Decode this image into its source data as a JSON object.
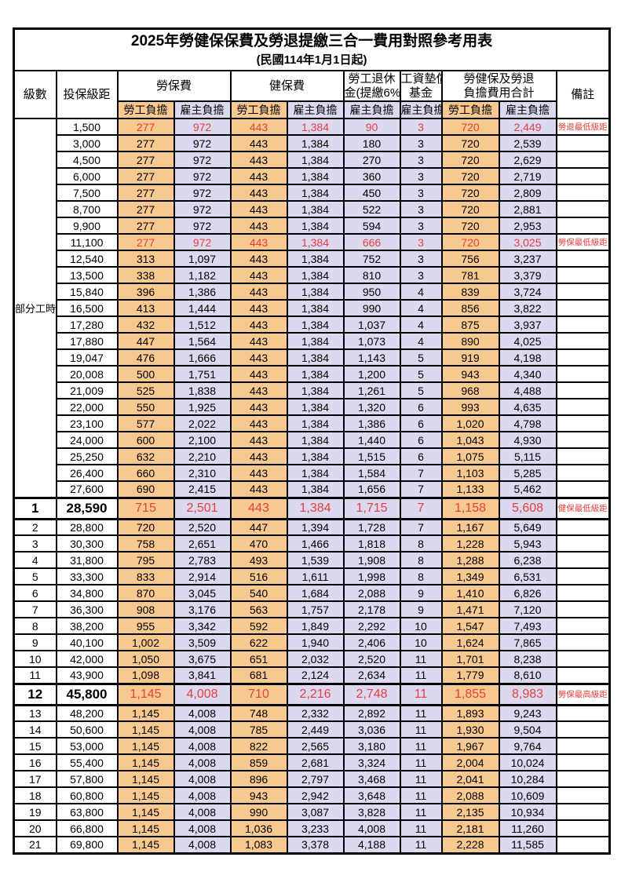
{
  "title": "2025年勞健保保費及勞退提繳三合一費用對照參考用表",
  "subtitle": "(民國114年1月1日起)",
  "headers": {
    "level": "級數",
    "bracket": "投保級距",
    "labor_ins": "勞保費",
    "health_ins": "健保費",
    "pension_l1": "勞工退休",
    "pension_l2": "金(提繳6%)",
    "wage_fund_l1": "工資墊償",
    "wage_fund_l2": "基金",
    "total_l1": "勞健保及勞退",
    "total_l2": "負擔費用合計",
    "remark": "備註",
    "employee": "勞工負擔",
    "employer": "雇主負擔"
  },
  "part_time": {
    "label": "部分工時",
    "rowspan": 23
  },
  "colors": {
    "employee_bg": "#F8C891",
    "employer_bg": "#DBD8EF",
    "highlight_text": "#E8403F",
    "border": "#000000"
  },
  "rows": [
    {
      "level": "",
      "bracket": "1,500",
      "values": [
        "277",
        "972",
        "443",
        "1,384",
        "90",
        "3",
        "720",
        "2,449"
      ],
      "remark": "勞退最低級距",
      "highlight": true,
      "big": false
    },
    {
      "level": "",
      "bracket": "3,000",
      "values": [
        "277",
        "972",
        "443",
        "1,384",
        "180",
        "3",
        "720",
        "2,539"
      ],
      "remark": "",
      "highlight": false,
      "big": false
    },
    {
      "level": "",
      "bracket": "4,500",
      "values": [
        "277",
        "972",
        "443",
        "1,384",
        "270",
        "3",
        "720",
        "2,629"
      ],
      "remark": "",
      "highlight": false,
      "big": false
    },
    {
      "level": "",
      "bracket": "6,000",
      "values": [
        "277",
        "972",
        "443",
        "1,384",
        "360",
        "3",
        "720",
        "2,719"
      ],
      "remark": "",
      "highlight": false,
      "big": false
    },
    {
      "level": "",
      "bracket": "7,500",
      "values": [
        "277",
        "972",
        "443",
        "1,384",
        "450",
        "3",
        "720",
        "2,809"
      ],
      "remark": "",
      "highlight": false,
      "big": false
    },
    {
      "level": "",
      "bracket": "8,700",
      "values": [
        "277",
        "972",
        "443",
        "1,384",
        "522",
        "3",
        "720",
        "2,881"
      ],
      "remark": "",
      "highlight": false,
      "big": false
    },
    {
      "level": "",
      "bracket": "9,900",
      "values": [
        "277",
        "972",
        "443",
        "1,384",
        "594",
        "3",
        "720",
        "2,953"
      ],
      "remark": "",
      "highlight": false,
      "big": false
    },
    {
      "level": "",
      "bracket": "11,100",
      "values": [
        "277",
        "972",
        "443",
        "1,384",
        "666",
        "3",
        "720",
        "3,025"
      ],
      "remark": "勞保最低級距",
      "highlight": true,
      "big": false
    },
    {
      "level": "",
      "bracket": "12,540",
      "values": [
        "313",
        "1,097",
        "443",
        "1,384",
        "752",
        "3",
        "756",
        "3,237"
      ],
      "remark": "",
      "highlight": false,
      "big": false
    },
    {
      "level": "",
      "bracket": "13,500",
      "values": [
        "338",
        "1,182",
        "443",
        "1,384",
        "810",
        "3",
        "781",
        "3,379"
      ],
      "remark": "",
      "highlight": false,
      "big": false
    },
    {
      "level": "",
      "bracket": "15,840",
      "values": [
        "396",
        "1,386",
        "443",
        "1,384",
        "950",
        "4",
        "839",
        "3,724"
      ],
      "remark": "",
      "highlight": false,
      "big": false
    },
    {
      "level": "",
      "bracket": "16,500",
      "values": [
        "413",
        "1,444",
        "443",
        "1,384",
        "990",
        "4",
        "856",
        "3,822"
      ],
      "remark": "",
      "highlight": false,
      "big": false
    },
    {
      "level": "",
      "bracket": "17,280",
      "values": [
        "432",
        "1,512",
        "443",
        "1,384",
        "1,037",
        "4",
        "875",
        "3,937"
      ],
      "remark": "",
      "highlight": false,
      "big": false
    },
    {
      "level": "",
      "bracket": "17,880",
      "values": [
        "447",
        "1,564",
        "443",
        "1,384",
        "1,073",
        "4",
        "890",
        "4,025"
      ],
      "remark": "",
      "highlight": false,
      "big": false
    },
    {
      "level": "",
      "bracket": "19,047",
      "values": [
        "476",
        "1,666",
        "443",
        "1,384",
        "1,143",
        "5",
        "919",
        "4,198"
      ],
      "remark": "",
      "highlight": false,
      "big": false
    },
    {
      "level": "",
      "bracket": "20,008",
      "values": [
        "500",
        "1,751",
        "443",
        "1,384",
        "1,200",
        "5",
        "943",
        "4,340"
      ],
      "remark": "",
      "highlight": false,
      "big": false
    },
    {
      "level": "",
      "bracket": "21,009",
      "values": [
        "525",
        "1,838",
        "443",
        "1,384",
        "1,261",
        "5",
        "968",
        "4,488"
      ],
      "remark": "",
      "highlight": false,
      "big": false
    },
    {
      "level": "",
      "bracket": "22,000",
      "values": [
        "550",
        "1,925",
        "443",
        "1,384",
        "1,320",
        "6",
        "993",
        "4,635"
      ],
      "remark": "",
      "highlight": false,
      "big": false
    },
    {
      "level": "",
      "bracket": "23,100",
      "values": [
        "577",
        "2,022",
        "443",
        "1,384",
        "1,386",
        "6",
        "1,020",
        "4,798"
      ],
      "remark": "",
      "highlight": false,
      "big": false
    },
    {
      "level": "",
      "bracket": "24,000",
      "values": [
        "600",
        "2,100",
        "443",
        "1,384",
        "1,440",
        "6",
        "1,043",
        "4,930"
      ],
      "remark": "",
      "highlight": false,
      "big": false
    },
    {
      "level": "",
      "bracket": "25,250",
      "values": [
        "632",
        "2,210",
        "443",
        "1,384",
        "1,515",
        "6",
        "1,075",
        "5,115"
      ],
      "remark": "",
      "highlight": false,
      "big": false
    },
    {
      "level": "",
      "bracket": "26,400",
      "values": [
        "660",
        "2,310",
        "443",
        "1,384",
        "1,584",
        "7",
        "1,103",
        "5,285"
      ],
      "remark": "",
      "highlight": false,
      "big": false
    },
    {
      "level": "",
      "bracket": "27,600",
      "values": [
        "690",
        "2,415",
        "443",
        "1,384",
        "1,656",
        "7",
        "1,133",
        "5,462"
      ],
      "remark": "",
      "highlight": false,
      "big": false
    },
    {
      "level": "1",
      "bracket": "28,590",
      "values": [
        "715",
        "2,501",
        "443",
        "1,384",
        "1,715",
        "7",
        "1,158",
        "5,608"
      ],
      "remark": "健保最低級距",
      "highlight": true,
      "big": true
    },
    {
      "level": "2",
      "bracket": "28,800",
      "values": [
        "720",
        "2,520",
        "447",
        "1,394",
        "1,728",
        "7",
        "1,167",
        "5,649"
      ],
      "remark": "",
      "highlight": false,
      "big": false
    },
    {
      "level": "3",
      "bracket": "30,300",
      "values": [
        "758",
        "2,651",
        "470",
        "1,466",
        "1,818",
        "8",
        "1,228",
        "5,943"
      ],
      "remark": "",
      "highlight": false,
      "big": false
    },
    {
      "level": "4",
      "bracket": "31,800",
      "values": [
        "795",
        "2,783",
        "493",
        "1,539",
        "1,908",
        "8",
        "1,288",
        "6,238"
      ],
      "remark": "",
      "highlight": false,
      "big": false
    },
    {
      "level": "5",
      "bracket": "33,300",
      "values": [
        "833",
        "2,914",
        "516",
        "1,611",
        "1,998",
        "8",
        "1,349",
        "6,531"
      ],
      "remark": "",
      "highlight": false,
      "big": false
    },
    {
      "level": "6",
      "bracket": "34,800",
      "values": [
        "870",
        "3,045",
        "540",
        "1,684",
        "2,088",
        "9",
        "1,410",
        "6,826"
      ],
      "remark": "",
      "highlight": false,
      "big": false
    },
    {
      "level": "7",
      "bracket": "36,300",
      "values": [
        "908",
        "3,176",
        "563",
        "1,757",
        "2,178",
        "9",
        "1,471",
        "7,120"
      ],
      "remark": "",
      "highlight": false,
      "big": false
    },
    {
      "level": "8",
      "bracket": "38,200",
      "values": [
        "955",
        "3,342",
        "592",
        "1,849",
        "2,292",
        "10",
        "1,547",
        "7,493"
      ],
      "remark": "",
      "highlight": false,
      "big": false
    },
    {
      "level": "9",
      "bracket": "40,100",
      "values": [
        "1,002",
        "3,509",
        "622",
        "1,940",
        "2,406",
        "10",
        "1,624",
        "7,865"
      ],
      "remark": "",
      "highlight": false,
      "big": false
    },
    {
      "level": "10",
      "bracket": "42,000",
      "values": [
        "1,050",
        "3,675",
        "651",
        "2,032",
        "2,520",
        "11",
        "1,701",
        "8,238"
      ],
      "remark": "",
      "highlight": false,
      "big": false
    },
    {
      "level": "11",
      "bracket": "43,900",
      "values": [
        "1,098",
        "3,841",
        "681",
        "2,124",
        "2,634",
        "11",
        "1,779",
        "8,610"
      ],
      "remark": "",
      "highlight": false,
      "big": false
    },
    {
      "level": "12",
      "bracket": "45,800",
      "values": [
        "1,145",
        "4,008",
        "710",
        "2,216",
        "2,748",
        "11",
        "1,855",
        "8,983"
      ],
      "remark": "勞保最高級距",
      "highlight": true,
      "big": true
    },
    {
      "level": "13",
      "bracket": "48,200",
      "values": [
        "1,145",
        "4,008",
        "748",
        "2,332",
        "2,892",
        "11",
        "1,893",
        "9,243"
      ],
      "remark": "",
      "highlight": false,
      "big": false
    },
    {
      "level": "14",
      "bracket": "50,600",
      "values": [
        "1,145",
        "4,008",
        "785",
        "2,449",
        "3,036",
        "11",
        "1,930",
        "9,504"
      ],
      "remark": "",
      "highlight": false,
      "big": false
    },
    {
      "level": "15",
      "bracket": "53,000",
      "values": [
        "1,145",
        "4,008",
        "822",
        "2,565",
        "3,180",
        "11",
        "1,967",
        "9,764"
      ],
      "remark": "",
      "highlight": false,
      "big": false
    },
    {
      "level": "16",
      "bracket": "55,400",
      "values": [
        "1,145",
        "4,008",
        "859",
        "2,681",
        "3,324",
        "11",
        "2,004",
        "10,024"
      ],
      "remark": "",
      "highlight": false,
      "big": false
    },
    {
      "level": "17",
      "bracket": "57,800",
      "values": [
        "1,145",
        "4,008",
        "896",
        "2,797",
        "3,468",
        "11",
        "2,041",
        "10,284"
      ],
      "remark": "",
      "highlight": false,
      "big": false
    },
    {
      "level": "18",
      "bracket": "60,800",
      "values": [
        "1,145",
        "4,008",
        "943",
        "2,942",
        "3,648",
        "11",
        "2,088",
        "10,609"
      ],
      "remark": "",
      "highlight": false,
      "big": false
    },
    {
      "level": "19",
      "bracket": "63,800",
      "values": [
        "1,145",
        "4,008",
        "990",
        "3,087",
        "3,828",
        "11",
        "2,135",
        "10,934"
      ],
      "remark": "",
      "highlight": false,
      "big": false
    },
    {
      "level": "20",
      "bracket": "66,800",
      "values": [
        "1,145",
        "4,008",
        "1,036",
        "3,233",
        "4,008",
        "11",
        "2,181",
        "11,260"
      ],
      "remark": "",
      "highlight": false,
      "big": false
    },
    {
      "level": "21",
      "bracket": "69,800",
      "values": [
        "1,145",
        "4,008",
        "1,083",
        "3,378",
        "4,188",
        "11",
        "2,228",
        "11,585"
      ],
      "remark": "",
      "highlight": false,
      "big": false
    }
  ]
}
